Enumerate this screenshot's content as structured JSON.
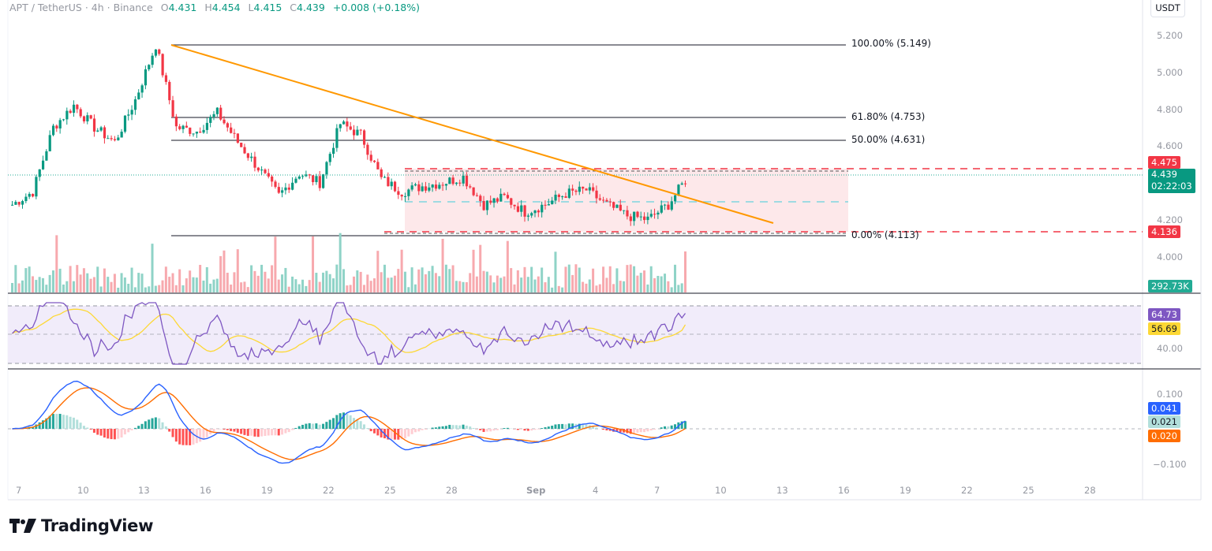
{
  "header": {
    "symbol": "APT / TetherUS",
    "interval": "4h",
    "exchange": "Binance",
    "sep": "·",
    "open_label": "O",
    "open": "4.431",
    "high_label": "H",
    "high": "4.454",
    "low_label": "L",
    "low": "4.415",
    "close_label": "C",
    "close": "4.439",
    "change": "+0.008 (+0.18%)"
  },
  "currency_button": "USDT",
  "price_axis": [
    "5.200",
    "5.000",
    "4.800",
    "4.600",
    "4.200",
    "4.000"
  ],
  "price_tags": {
    "resistance": "4.475",
    "last_price": "4.439",
    "countdown": "02:22:03",
    "support": "4.136",
    "volume": "292.73K"
  },
  "fib_levels": [
    {
      "label": "100.00% (5.149)",
      "price": 5.149
    },
    {
      "label": "61.80% (4.753)",
      "price": 4.753
    },
    {
      "label": "50.00% (4.631)",
      "price": 4.631
    },
    {
      "label": "0.00% (4.113)",
      "price": 4.113
    }
  ],
  "rsi_panel": {
    "rsi": "64.73",
    "rsi_ma": "56.69",
    "axis_label": "40.00"
  },
  "macd_panel": {
    "macd": "0.041",
    "histogram": "0.021",
    "signal": "0.020",
    "axis_top": "0.100",
    "axis_bottom": "−0.100"
  },
  "time_axis": [
    "7",
    "10",
    "13",
    "16",
    "19",
    "22",
    "25",
    "28",
    "Sep",
    "4",
    "7",
    "10",
    "13",
    "16",
    "19",
    "22",
    "25",
    "28"
  ],
  "brand": "TradingView",
  "colors": {
    "up": "#089981",
    "down": "#f23645",
    "trendline": "#ff9800",
    "rsi": "#7e57c2",
    "rsi_ma": "#fdd835",
    "macd": "#2962ff",
    "signal": "#ff6d00",
    "range_box": "#fde8ea",
    "last_price": "#22ab94"
  },
  "chart_data": {
    "type": "candlestick",
    "title": "APT / TetherUS · 4h · Binance",
    "xlabel": "",
    "ylabel": "USDT",
    "ylim": [
      3.95,
      5.25
    ],
    "x_ticks": [
      "7",
      "10",
      "13",
      "16",
      "19",
      "22",
      "25",
      "28",
      "Sep",
      "4",
      "7",
      "10",
      "13",
      "16",
      "19",
      "22",
      "25",
      "28"
    ],
    "ohlc_summary": {
      "open": 4.431,
      "high": 4.454,
      "low": 4.415,
      "close": 4.439,
      "change": 0.008,
      "change_pct": 0.18
    },
    "price_path_approx": [
      {
        "date": "Aug 7",
        "close": 4.28
      },
      {
        "date": "Aug 8",
        "close": 4.35
      },
      {
        "date": "Aug 9",
        "close": 4.7
      },
      {
        "date": "Aug 10",
        "close": 4.82
      },
      {
        "date": "Aug 11",
        "close": 4.7
      },
      {
        "date": "Aug 12",
        "close": 4.62
      },
      {
        "date": "Aug 13",
        "close": 4.85
      },
      {
        "date": "Aug 14",
        "close": 5.149
      },
      {
        "date": "Aug 15",
        "close": 4.7
      },
      {
        "date": "Aug 16",
        "close": 4.68
      },
      {
        "date": "Aug 17",
        "close": 4.78
      },
      {
        "date": "Aug 18",
        "close": 4.62
      },
      {
        "date": "Aug 19",
        "close": 4.48
      },
      {
        "date": "Aug 20",
        "close": 4.33
      },
      {
        "date": "Aug 21",
        "close": 4.45
      },
      {
        "date": "Aug 22",
        "close": 4.4
      },
      {
        "date": "Aug 23",
        "close": 4.72
      },
      {
        "date": "Aug 24",
        "close": 4.66
      },
      {
        "date": "Aug 25",
        "close": 4.42
      },
      {
        "date": "Aug 26",
        "close": 4.35
      },
      {
        "date": "Aug 27",
        "close": 4.38
      },
      {
        "date": "Aug 28",
        "close": 4.4
      },
      {
        "date": "Aug 29",
        "close": 4.43
      },
      {
        "date": "Aug 30",
        "close": 4.28
      },
      {
        "date": "Aug 31",
        "close": 4.32
      },
      {
        "date": "Sep 1",
        "close": 4.24
      },
      {
        "date": "Sep 2",
        "close": 4.28
      },
      {
        "date": "Sep 3",
        "close": 4.34
      },
      {
        "date": "Sep 4",
        "close": 4.36
      },
      {
        "date": "Sep 5",
        "close": 4.28
      },
      {
        "date": "Sep 6",
        "close": 4.22
      },
      {
        "date": "Sep 7",
        "close": 4.2
      },
      {
        "date": "Sep 8",
        "close": 4.28
      },
      {
        "date": "Sep 9",
        "close": 4.439
      }
    ],
    "annotations": {
      "fibonacci": [
        {
          "level": "100.00%",
          "price": 5.149
        },
        {
          "level": "61.80%",
          "price": 4.753
        },
        {
          "level": "50.00%",
          "price": 4.631
        },
        {
          "level": "0.00%",
          "price": 4.113
        }
      ],
      "resistance": 4.475,
      "support": 4.136,
      "descending_trendline": {
        "from_price": 5.149,
        "from_date": "Aug 14",
        "to_price": 4.17,
        "to_date": "Sep 12"
      },
      "consolidation_box": {
        "from_date": "Aug 25",
        "to_date": "Sep 16",
        "top": 4.475,
        "bottom": 4.136,
        "mid": 4.3
      }
    },
    "volume_last": "292.73K",
    "rsi": {
      "value": 64.73,
      "ma": 56.69,
      "bands": [
        70,
        50,
        30
      ],
      "axis_label": "40.00"
    },
    "macd": {
      "macd": 0.041,
      "histogram": 0.021,
      "signal": 0.02,
      "axis": [
        0.1,
        -0.1
      ]
    }
  }
}
